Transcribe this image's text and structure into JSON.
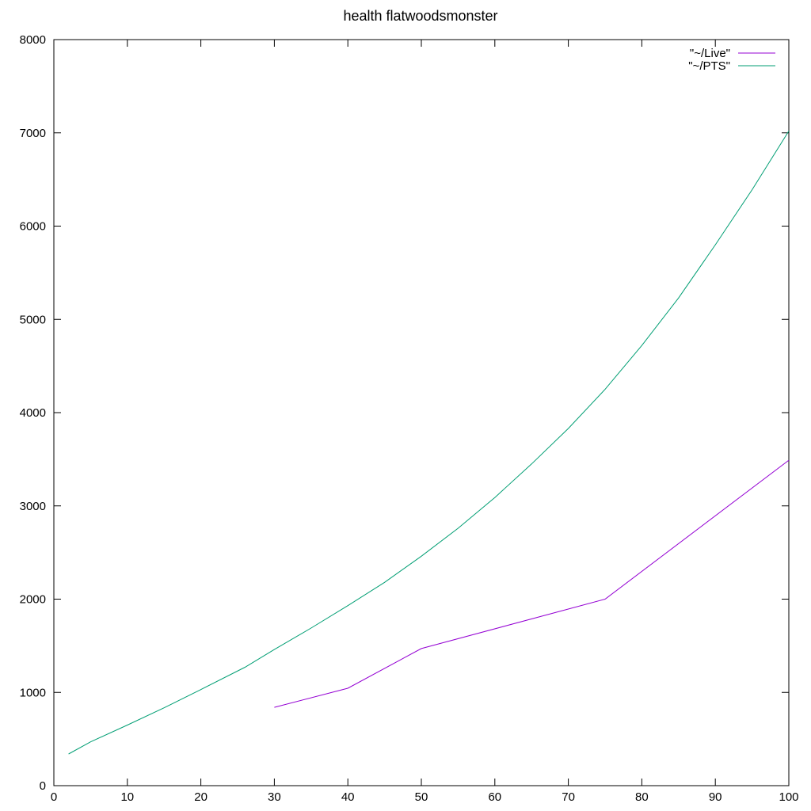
{
  "chart_data": {
    "type": "line",
    "title": "health flatwoodsmonster",
    "xlabel": "",
    "ylabel": "",
    "xlim": [
      0,
      100
    ],
    "ylim": [
      0,
      8000
    ],
    "x_ticks": [
      0,
      10,
      20,
      30,
      40,
      50,
      60,
      70,
      80,
      90,
      100
    ],
    "y_ticks": [
      0,
      1000,
      2000,
      3000,
      4000,
      5000,
      6000,
      7000,
      8000
    ],
    "grid": false,
    "legend_position": "top-right",
    "series": [
      {
        "name": "\"~/Live\"",
        "color": "#9400d3",
        "x": [
          30,
          40,
          50,
          75,
          100
        ],
        "y": [
          840,
          1045,
          1470,
          2000,
          3490
        ]
      },
      {
        "name": "\"~/PTS\"",
        "color": "#009e73",
        "x": [
          2,
          5,
          10,
          15,
          20,
          26,
          30,
          35,
          40,
          45,
          50,
          55,
          60,
          65,
          70,
          75,
          80,
          85,
          90,
          95,
          100
        ],
        "y": [
          340,
          470,
          650,
          835,
          1030,
          1270,
          1460,
          1690,
          1930,
          2180,
          2460,
          2760,
          3090,
          3450,
          3830,
          4250,
          4720,
          5230,
          5800,
          6390,
          7020
        ]
      }
    ]
  }
}
